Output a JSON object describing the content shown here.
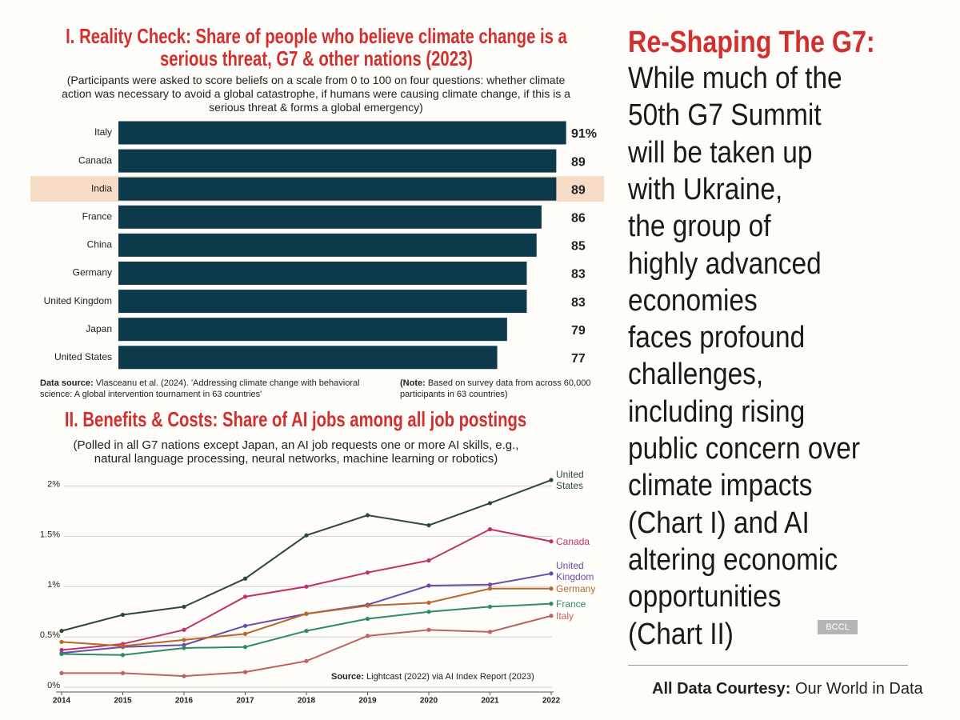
{
  "chart_data": [
    {
      "type": "bar",
      "orientation": "horizontal",
      "title": "I. Reality Check: Share of people who believe climate change is a serious threat, G7 & other nations (2023)",
      "subtitle": "(Participants were asked to score beliefs on a scale from 0 to 100 on four questions: whether climate action was necessary to avoid a global catastrophe, if humans were causing climate change, if this is a serious threat & forms a global emergency)",
      "categories": [
        "Italy",
        "Canada",
        "India",
        "France",
        "China",
        "Germany",
        "United Kingdom",
        "Japan",
        "United States"
      ],
      "values": [
        91,
        89,
        89,
        86,
        85,
        83,
        83,
        79,
        77
      ],
      "value_labels": [
        "91%",
        "89",
        "89",
        "86",
        "85",
        "83",
        "83",
        "79",
        "77"
      ],
      "color": "#0d3a4a",
      "highlight": "India",
      "highlight_color": "#f6dcc6",
      "xlim": [
        0,
        100
      ],
      "source_label": "Data source:",
      "source": "Vlasceanu et al. (2024). 'Addressing climate change with behavioral science: A global intervention tournament in 63 countries'",
      "note_label": "(Note:",
      "note": "Based on survey data from across 60,000 participants in 63 countries)"
    },
    {
      "type": "line",
      "title": "II. Benefits & Costs: Share of AI jobs among all job postings",
      "subtitle": "(Polled in all G7 nations except Japan, an AI job requests one or more AI skills, e.g., natural language processing, neural networks, machine learning or robotics)",
      "x": [
        2014,
        2015,
        2016,
        2017,
        2018,
        2019,
        2020,
        2021,
        2022
      ],
      "xlim": [
        2014,
        2022
      ],
      "ylim": [
        0,
        2.1
      ],
      "yticks": [
        {
          "value": 0,
          "label": "0%"
        },
        {
          "value": 0.5,
          "label": "0.5%"
        },
        {
          "value": 1,
          "label": "1%"
        },
        {
          "value": 1.5,
          "label": "1.5%"
        },
        {
          "value": 2,
          "label": "2%"
        }
      ],
      "grid": true,
      "series": [
        {
          "name": "United States",
          "color": "#2d4a32",
          "values": [
            0.56,
            0.72,
            0.8,
            1.08,
            1.51,
            1.71,
            1.61,
            1.83,
            2.06
          ]
        },
        {
          "name": "Canada",
          "color": "#c0306a",
          "values": [
            0.37,
            0.43,
            0.57,
            0.9,
            1.0,
            1.14,
            1.26,
            1.57,
            1.45
          ]
        },
        {
          "name": "United Kingdom",
          "color": "#6a4aaa",
          "values": [
            0.34,
            0.4,
            0.42,
            0.61,
            0.73,
            0.82,
            1.01,
            1.02,
            1.13
          ]
        },
        {
          "name": "Germany",
          "color": "#b8672a",
          "values": [
            0.45,
            0.41,
            0.47,
            0.53,
            0.73,
            0.81,
            0.84,
            0.98,
            0.98
          ]
        },
        {
          "name": "France",
          "color": "#2e8a6a",
          "values": [
            0.33,
            0.32,
            0.39,
            0.4,
            0.56,
            0.68,
            0.75,
            0.8,
            0.83
          ]
        },
        {
          "name": "Italy",
          "color": "#c06060",
          "values": [
            0.14,
            0.14,
            0.11,
            0.15,
            0.26,
            0.51,
            0.57,
            0.55,
            0.71
          ]
        }
      ],
      "source_label": "Source:",
      "source": "Lightcast (2022) via AI Index Report (2023)"
    }
  ],
  "sidebar": {
    "headline": "Re-Shaping The G7:",
    "body_lines": [
      "While much of the",
      "50th G7 Summit",
      "will be taken up",
      "with Ukraine,",
      "the group of",
      "highly advanced",
      "economies",
      "faces profound",
      "challenges,",
      "including rising",
      "public concern over",
      "climate impacts",
      "(Chart I) and AI",
      "altering economic",
      "opportunities",
      "(Chart II)"
    ],
    "watermark": "BCCL",
    "credit_label": "All Data Courtesy:",
    "credit": "Our World in Data"
  }
}
